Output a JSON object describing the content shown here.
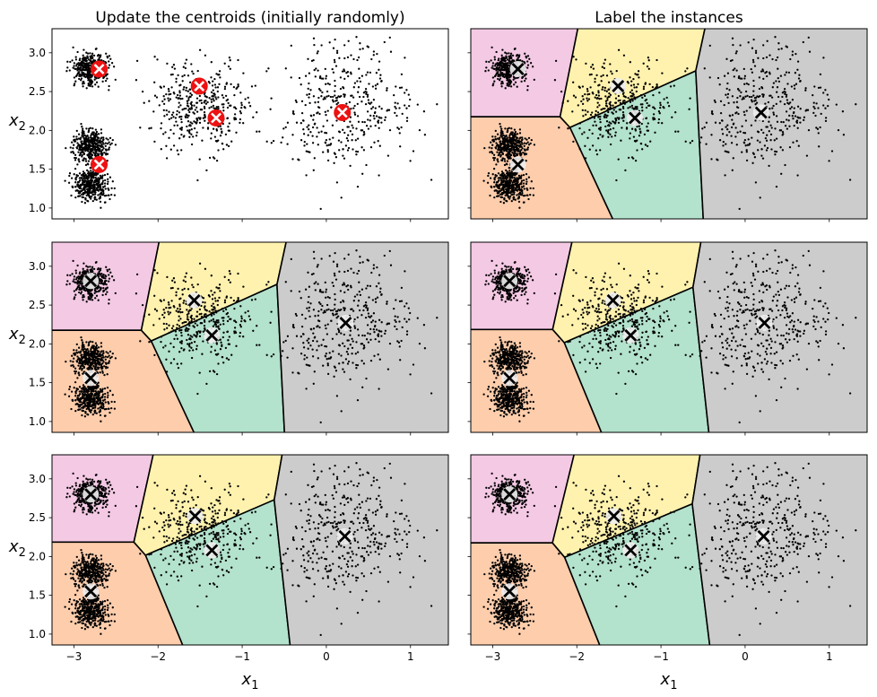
{
  "chart_data": {
    "type": "scatter",
    "description_kind": "k-means iterations",
    "titles": {
      "left": "Update the centroids (initially randomly)",
      "right": "Label the instances"
    },
    "xlabel": {
      "base": "x",
      "sub": "1"
    },
    "ylabel": {
      "base": "x",
      "sub": "2"
    },
    "xlim": [
      -3.26,
      1.45
    ],
    "ylim": [
      0.86,
      3.31
    ],
    "xticks": [
      {
        "value": -3,
        "label": "−3"
      },
      {
        "value": -2,
        "label": "−2"
      },
      {
        "value": -1,
        "label": "−1"
      },
      {
        "value": 0,
        "label": "0"
      },
      {
        "value": 1,
        "label": "1"
      }
    ],
    "yticks": [
      {
        "value": 1.0,
        "label": "1.0"
      },
      {
        "value": 1.5,
        "label": "1.5"
      },
      {
        "value": 2.0,
        "label": "2.0"
      },
      {
        "value": 2.5,
        "label": "2.5"
      },
      {
        "value": 3.0,
        "label": "3.0"
      }
    ],
    "blobs": [
      {
        "center": [
          0.2,
          2.3
        ],
        "std": 0.4,
        "n": 400
      },
      {
        "center": [
          -1.5,
          2.3
        ],
        "std": 0.3,
        "n": 400
      },
      {
        "center": [
          -2.8,
          1.8
        ],
        "std": 0.1,
        "n": 400
      },
      {
        "center": [
          -2.8,
          2.8
        ],
        "std": 0.1,
        "n": 400
      },
      {
        "center": [
          -2.8,
          1.3
        ],
        "std": 0.1,
        "n": 400
      }
    ],
    "cluster_colors": [
      "#f4c9e4",
      "#fdcdac",
      "#fff2ae",
      "#b3e2cd",
      "#cccccc"
    ],
    "centroid_steps": [
      [
        [
          -2.7,
          2.79
        ],
        [
          -2.7,
          1.56
        ],
        [
          -1.51,
          2.57
        ],
        [
          -1.31,
          2.16
        ],
        [
          0.19,
          2.23
        ]
      ],
      [
        [
          -2.8,
          2.81
        ],
        [
          -2.8,
          1.56
        ],
        [
          -1.57,
          2.56
        ],
        [
          -1.36,
          2.11
        ],
        [
          0.23,
          2.27
        ]
      ],
      [
        [
          -2.8,
          2.8
        ],
        [
          -2.8,
          1.55
        ],
        [
          -1.56,
          2.52
        ],
        [
          -1.36,
          2.08
        ],
        [
          0.22,
          2.26
        ]
      ]
    ],
    "panels": [
      {
        "row": 0,
        "col": 0,
        "regions_step": null,
        "centroids_step": 0,
        "marker": "red"
      },
      {
        "row": 0,
        "col": 1,
        "regions_step": 0,
        "centroids_step": 0,
        "marker": "white"
      },
      {
        "row": 1,
        "col": 0,
        "regions_step": 0,
        "centroids_step": 1,
        "marker": "white"
      },
      {
        "row": 1,
        "col": 1,
        "regions_step": 1,
        "centroids_step": 1,
        "marker": "white"
      },
      {
        "row": 2,
        "col": 0,
        "regions_step": 1,
        "centroids_step": 2,
        "marker": "white"
      },
      {
        "row": 2,
        "col": 1,
        "regions_step": 2,
        "centroids_step": 2,
        "marker": "white"
      }
    ],
    "marker_colors": {
      "red": "#ee1111",
      "white": "#eeeeee"
    }
  }
}
